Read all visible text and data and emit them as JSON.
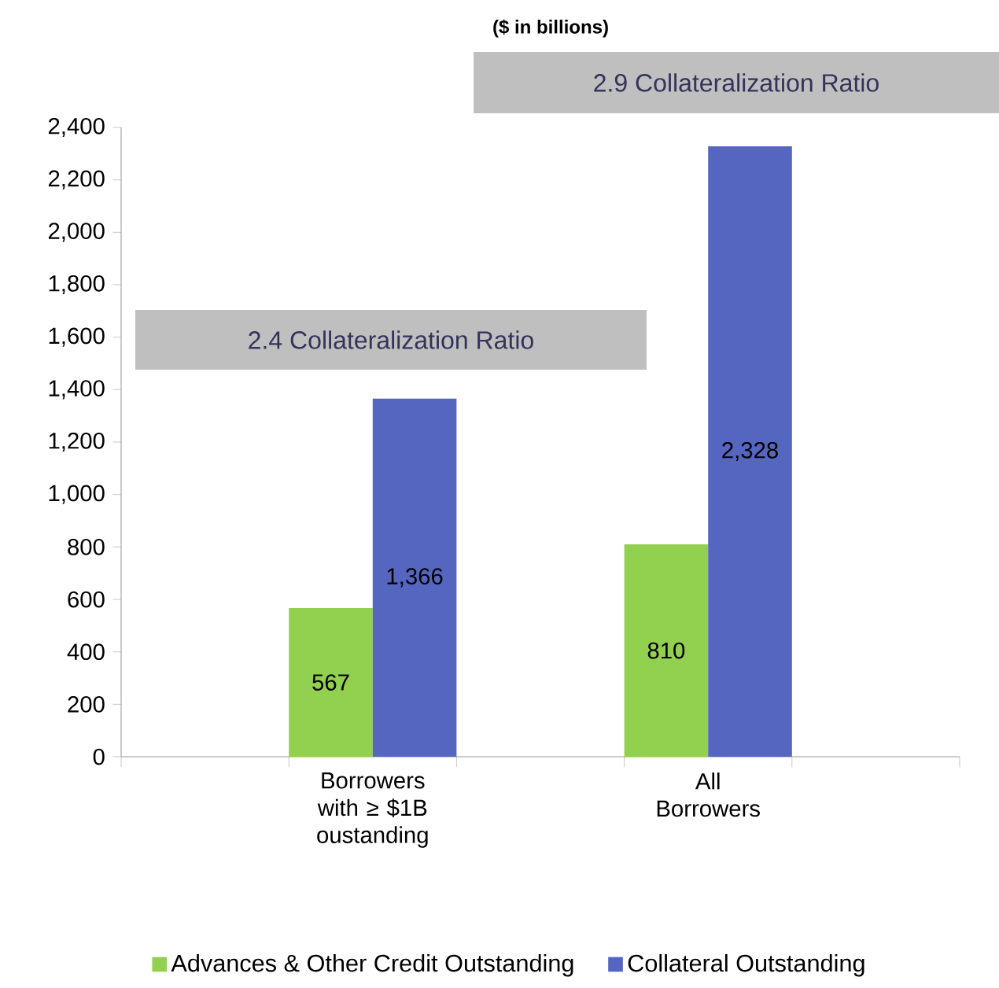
{
  "chart_data": {
    "type": "bar",
    "subtitle": "($ in billions)",
    "categories": [
      null,
      "Borrowers with ≥ $1B oustanding",
      null,
      "All Borrowers",
      null
    ],
    "series": [
      {
        "name": "Advances & Other Credit Outstanding",
        "color": "#92d050",
        "values": [
          null,
          567,
          null,
          810,
          null
        ],
        "value_labels": [
          null,
          "567",
          null,
          "810",
          null
        ]
      },
      {
        "name": "Collateral Outstanding",
        "color": "#5566c0",
        "values": [
          null,
          1366,
          null,
          2328,
          null
        ],
        "value_labels": [
          null,
          "1,366",
          null,
          "2,328",
          null
        ]
      }
    ],
    "ylim": [
      0,
      2400
    ],
    "yticks": [
      {
        "value": 0,
        "label": "0"
      },
      {
        "value": 200,
        "label": "200"
      },
      {
        "value": 400,
        "label": "400"
      },
      {
        "value": 600,
        "label": "600"
      },
      {
        "value": 800,
        "label": "800"
      },
      {
        "value": 1000,
        "label": "1,000"
      },
      {
        "value": 1200,
        "label": "1,200"
      },
      {
        "value": 1400,
        "label": "1,400"
      },
      {
        "value": 1600,
        "label": "1,600"
      },
      {
        "value": 1800,
        "label": "1,800"
      },
      {
        "value": 2000,
        "label": "2,000"
      },
      {
        "value": 2200,
        "label": "2,200"
      },
      {
        "value": 2400,
        "label": "2,400"
      }
    ],
    "annotations": [
      "2.4 Collateralization Ratio",
      "2.9 Collateralization Ratio"
    ],
    "grid": false,
    "legend": "bottom"
  }
}
